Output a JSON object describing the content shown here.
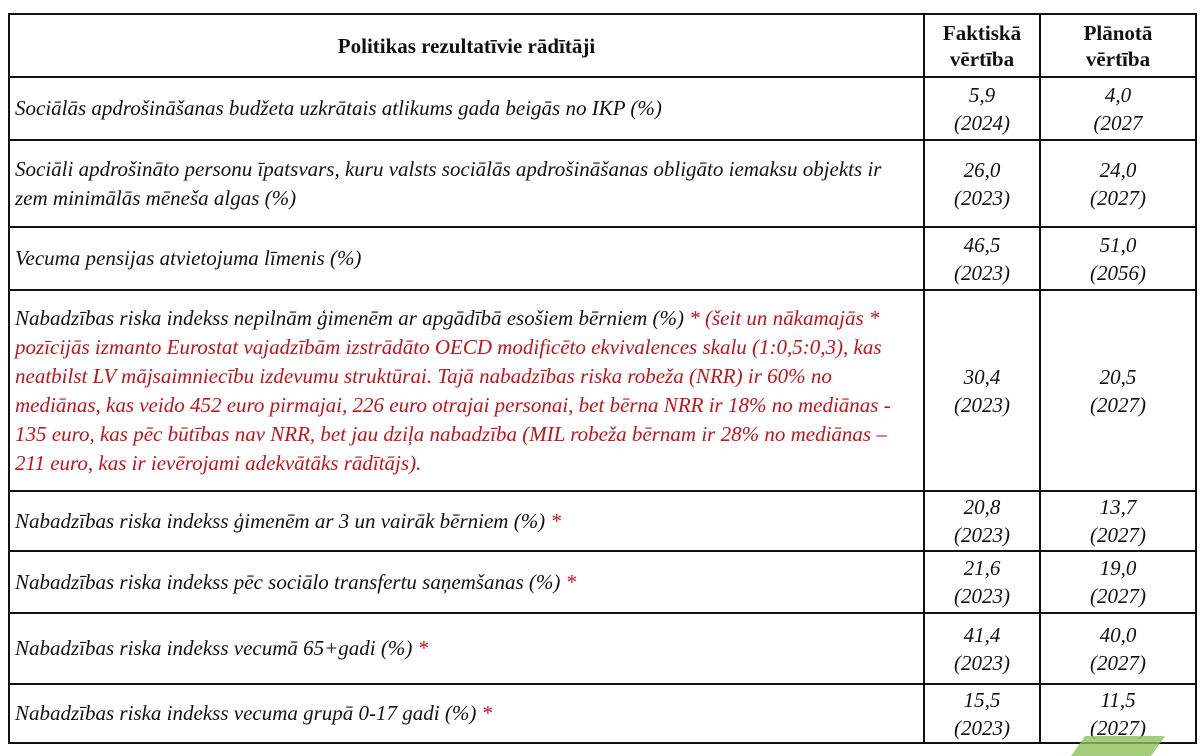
{
  "table": {
    "headers": {
      "indicator": "Politikas rezultatīvie rādītāji",
      "actual_line1": "Faktiskā",
      "actual_line2": "vērtība",
      "planned_line1": "Plānotā",
      "planned_line2": "vērtība"
    },
    "rows": [
      {
        "indicator": "Sociālās apdrošināšanas budžeta uzkrātais atlikums gada beigās no IKP (%)",
        "asterisk": "",
        "note": "",
        "actual": "5,9",
        "actual_year": "(2024)",
        "planned": "4,0",
        "planned_year": "(2027"
      },
      {
        "indicator": "Sociāli apdrošināto personu īpatsvars, kuru valsts sociālās apdrošināšanas obligāto iemaksu objekts ir zem minimālās mēneša algas (%)",
        "asterisk": "",
        "note": "",
        "actual": "26,0",
        "actual_year": "(2023)",
        "planned": "24,0",
        "planned_year": "(2027)"
      },
      {
        "indicator": "Vecuma pensijas atvietojuma līmenis (%)",
        "asterisk": "",
        "note": "",
        "actual": "46,5",
        "actual_year": "(2023)",
        "planned": "51,0",
        "planned_year": "(2056)"
      },
      {
        "indicator": "Nabadzības riska indekss nepilnām ģimenēm ar apgādībā esošiem bērniem (%)",
        "asterisk": "*",
        "note": "(šeit un nākamajās * pozīcijās izmanto Eurostat vajadzībām izstrādāto OECD modificēto ekvivalences skalu (1:0,5:0,3), kas neatbilst LV mājsaimniecību izdevumu struktūrai. Tajā nabadzības riska robeža (NRR) ir 60% no mediānas, kas veido 452 euro pirmajai,  226 euro otrajai personai, bet bērna NRR ir 18% no mediānas - 135 euro, kas pēc būtības nav NRR, bet jau dziļa nabadzība (MIL robeža bērnam ir 28% no mediānas – 211 euro, kas ir ievērojami adekvātāks rādītājs).",
        "actual": "30,4",
        "actual_year": "(2023)",
        "planned": "20,5",
        "planned_year": "(2027)"
      },
      {
        "indicator": "Nabadzības riska indekss ģimenēm ar 3 un vairāk bērniem (%)",
        "asterisk": "*",
        "note": "",
        "actual": "20,8",
        "actual_year": "(2023)",
        "planned": "13,7",
        "planned_year": "(2027)"
      },
      {
        "indicator": "Nabadzības riska indekss pēc sociālo transfertu saņemšanas (%)",
        "asterisk": "*",
        "note": "",
        "actual": "21,6",
        "actual_year": "(2023)",
        "planned": "19,0",
        "planned_year": "(2027)"
      },
      {
        "indicator": "Nabadzības riska indekss vecumā 65+gadi (%)",
        "asterisk": "*",
        "note": "",
        "actual": "41,4",
        "actual_year": "(2023)",
        "planned": "40,0",
        "planned_year": "(2027)"
      },
      {
        "indicator": "Nabadzības riska indekss vecuma grupā 0-17 gadi (%)",
        "asterisk": "*",
        "note": "",
        "actual": "15,5",
        "actual_year": "(2023)",
        "planned": "11,5",
        "planned_year": "(2027)"
      }
    ],
    "colors": {
      "note_red": "#c0141c",
      "border": "#111111"
    }
  }
}
